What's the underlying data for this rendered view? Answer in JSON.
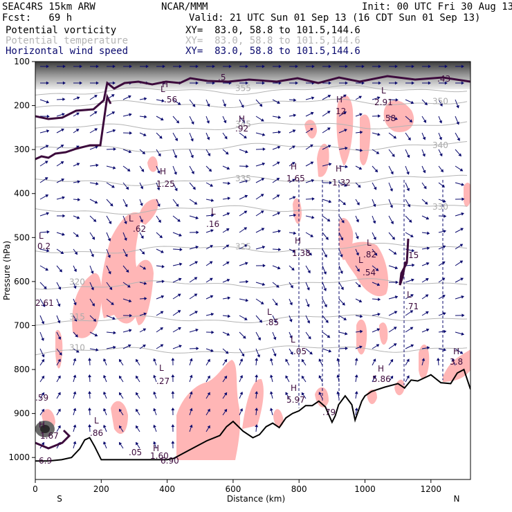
{
  "header": {
    "model": "SEAC4RS 15km ARW",
    "org": "NCAR/MMM",
    "init": "Init: 00 UTC Fri 30 Aug 13",
    "fcst": "Fcst:   69 h",
    "valid": "Valid: 21 UTC Sun 01 Sep 13 (16 CDT Sun 01 Sep 13)",
    "fields": [
      {
        "name": "Potential vorticity",
        "xy": "XY=  83.0, 58.8 to 101.5,144.6",
        "color": "#000000"
      },
      {
        "name": "Potential temperature",
        "xy": "XY=  83.0, 58.8 to 101.5,144.6",
        "color": "#b4b4b4"
      },
      {
        "name": "Horizontal wind speed",
        "xy": "XY=  83.0, 58.8 to 101.5,144.6",
        "color": "#0a0a6e"
      }
    ]
  },
  "chart_data": {
    "type": "cross-section",
    "xlabel": "Distance (km)",
    "ylabel": "Pressure (hPa)",
    "xlim": [
      0,
      1320
    ],
    "ylim": [
      1050,
      100
    ],
    "x_ticks": [
      0,
      200,
      400,
      600,
      800,
      1000,
      1200
    ],
    "y_ticks": [
      100,
      200,
      300,
      400,
      500,
      600,
      700,
      800,
      900,
      1000
    ],
    "left_end_label": "S",
    "right_end_label": "N",
    "terrain_surface": {
      "x": [
        0,
        40,
        80,
        110,
        135,
        150,
        165,
        180,
        200,
        250,
        300,
        350,
        400,
        420,
        450,
        480,
        520,
        560,
        580,
        600,
        630,
        660,
        680,
        700,
        720,
        740,
        760,
        780,
        800,
        820,
        840,
        860,
        880,
        900,
        910,
        920,
        940,
        960,
        970,
        990,
        1000,
        1020,
        1060,
        1100,
        1120,
        1140,
        1160,
        1200,
        1230,
        1260,
        1280,
        1300,
        1320
      ],
      "p": [
        1008,
        1008,
        1005,
        1000,
        980,
        960,
        955,
        975,
        1005,
        1005,
        1005,
        1005,
        1005,
        1002,
        990,
        978,
        962,
        950,
        930,
        918,
        940,
        955,
        948,
        930,
        922,
        932,
        910,
        900,
        894,
        882,
        882,
        872,
        885,
        920,
        905,
        880,
        860,
        880,
        915,
        872,
        860,
        850,
        840,
        832,
        842,
        824,
        826,
        812,
        830,
        832,
        808,
        800,
        845
      ]
    },
    "theta_contours": [
      {
        "label": "355",
        "p": 170
      },
      {
        "label": "350",
        "p": 200
      },
      {
        "label": "345",
        "p": 252
      },
      {
        "label": "340",
        "p": 300
      },
      {
        "label": "335",
        "p": 375
      },
      {
        "label": "330",
        "p": 440
      },
      {
        "label": "325",
        "p": 530
      },
      {
        "label": "320",
        "p": 610
      },
      {
        "label": "315",
        "p": 690
      },
      {
        "label": "310",
        "p": 760
      }
    ],
    "pv_labels": [
      "L",
      "H",
      ".56",
      ".92",
      "1.25",
      ".62",
      ".16",
      "1.65",
      "1.32",
      "1.38",
      "0.2",
      "2.61",
      ".82",
      ".54",
      "15",
      ".71",
      ".85",
      ".05",
      "5.97",
      ".79",
      "5.86",
      "3.8",
      "2.91",
      ".58",
      ".27",
      ".86",
      "1.67",
      ".59",
      "6.9",
      ".05",
      "1.60",
      "6.90",
      ".43",
      "12"
    ],
    "shaded_pv_color": "#ffb6b6",
    "wind_vector_color": "#0a0a6e"
  }
}
